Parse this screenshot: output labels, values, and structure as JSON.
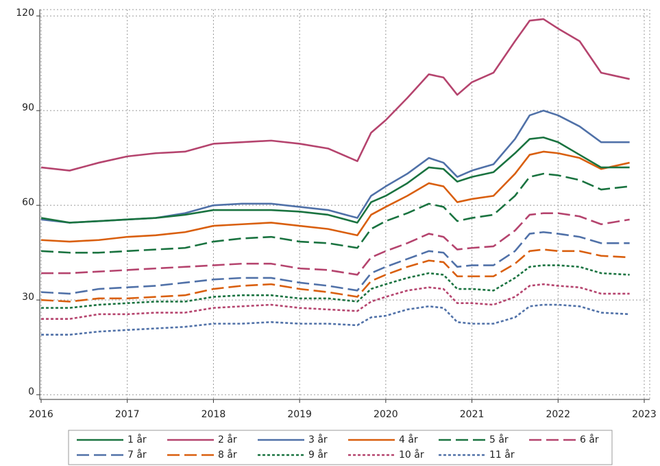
{
  "chart_data": {
    "type": "line",
    "x": [
      2016.0,
      2016.33,
      2016.67,
      2017.0,
      2017.33,
      2017.67,
      2018.0,
      2018.33,
      2018.67,
      2019.0,
      2019.33,
      2019.67,
      2019.83,
      2020.0,
      2020.25,
      2020.5,
      2020.67,
      2020.83,
      2021.0,
      2021.25,
      2021.5,
      2021.67,
      2021.83,
      2022.0,
      2022.25,
      2022.5,
      2022.83
    ],
    "xlim": [
      2016,
      2023
    ],
    "xticks": [
      2016,
      2017,
      2018,
      2019,
      2020,
      2021,
      2022,
      2023
    ],
    "ylim": [
      -1.5,
      122
    ],
    "yticks": [
      0,
      30,
      60,
      90,
      120
    ],
    "grid": true,
    "legend": "bottom",
    "series": [
      {
        "name": "1 år",
        "color": "#1a7340",
        "style": "solid",
        "values": [
          56,
          54.5,
          55,
          55.5,
          56,
          57,
          58.5,
          58.5,
          58.5,
          58,
          57,
          54.5,
          61,
          63,
          67,
          72,
          71.5,
          67.5,
          69,
          70.5,
          76.5,
          81,
          81.5,
          80,
          76,
          72,
          72
        ]
      },
      {
        "name": "2 år",
        "color": "#b5446e",
        "style": "solid",
        "values": [
          72,
          71,
          73.5,
          75.5,
          76.5,
          77,
          79.5,
          80,
          80.5,
          79.5,
          78,
          74,
          83,
          87,
          94,
          101.5,
          100.5,
          95,
          99,
          102,
          112,
          118.5,
          119,
          116,
          112,
          102,
          100
        ]
      },
      {
        "name": "3 år",
        "color": "#5071a8",
        "style": "solid",
        "values": [
          55.5,
          54.5,
          55,
          55.5,
          56,
          57.5,
          60,
          60.5,
          60.5,
          59.5,
          58.5,
          56,
          63,
          66,
          70,
          75,
          73.5,
          69,
          71,
          73,
          81,
          88.5,
          90,
          88.5,
          85,
          80,
          80
        ]
      },
      {
        "name": "4 år",
        "color": "#d95f0e",
        "style": "solid",
        "values": [
          49,
          48.5,
          49,
          50,
          50.5,
          51.5,
          53.5,
          54,
          54.5,
          53.5,
          52.5,
          50.5,
          57,
          59.5,
          63,
          67,
          66,
          61,
          62,
          63,
          70,
          76,
          77,
          76.5,
          75,
          71.5,
          73.5
        ]
      },
      {
        "name": "5 år",
        "color": "#1a7340",
        "style": "dashed",
        "values": [
          45.5,
          45,
          45,
          45.5,
          46,
          46.5,
          48.5,
          49.5,
          50,
          48.5,
          48,
          46.5,
          52.5,
          55,
          57.5,
          60.5,
          59.5,
          55,
          56,
          57,
          63,
          69,
          70,
          69.5,
          68,
          65,
          66
        ]
      },
      {
        "name": "6 år",
        "color": "#b5446e",
        "style": "dashed",
        "values": [
          38.5,
          38.5,
          39,
          39.5,
          40,
          40.5,
          41,
          41.5,
          41.5,
          40,
          39.5,
          38,
          43.5,
          45.5,
          48,
          51,
          50,
          46,
          46.5,
          47,
          52,
          57,
          57.5,
          57.5,
          56.5,
          54,
          55.5
        ]
      },
      {
        "name": "7 år",
        "color": "#5071a8",
        "style": "dashed",
        "values": [
          32.5,
          32,
          33.5,
          34,
          34.5,
          35.5,
          36.5,
          37,
          37,
          35.5,
          34.5,
          33,
          38.5,
          40.5,
          43,
          45.5,
          45,
          40.5,
          41,
          41,
          45.5,
          51,
          51.5,
          51,
          50,
          48,
          48
        ]
      },
      {
        "name": "8 år",
        "color": "#d95f0e",
        "style": "dashed",
        "values": [
          30,
          29.5,
          30.5,
          30.5,
          31,
          31.5,
          33.5,
          34.5,
          35,
          33.5,
          32.5,
          31,
          36,
          38,
          40.5,
          42.5,
          42,
          37.5,
          37.5,
          37.5,
          41.5,
          45.5,
          46,
          45.5,
          45.5,
          44,
          43.5
        ]
      },
      {
        "name": "9 år",
        "color": "#1a7340",
        "style": "dotted",
        "values": [
          27.5,
          27.5,
          28.5,
          29,
          29.5,
          29.5,
          31,
          31.5,
          31.5,
          30.5,
          30.5,
          29.5,
          33.5,
          35,
          37,
          38.5,
          38,
          33.5,
          33.5,
          33,
          37,
          40.5,
          41,
          41,
          40.5,
          38.5,
          38
        ]
      },
      {
        "name": "10 år",
        "color": "#b5446e",
        "style": "dotted",
        "values": [
          24,
          24,
          25.5,
          25.5,
          26,
          26,
          27.5,
          28,
          28.5,
          27.5,
          27,
          26.5,
          29.5,
          31,
          33,
          34,
          33.5,
          29,
          29,
          28.5,
          31,
          34.5,
          35,
          34.5,
          34,
          32,
          32
        ]
      },
      {
        "name": "11 år",
        "color": "#5071a8",
        "style": "dotted",
        "values": [
          19,
          19,
          20,
          20.5,
          21,
          21.5,
          22.5,
          22.5,
          23,
          22.5,
          22.5,
          22,
          24.5,
          25,
          27,
          28,
          27.5,
          23,
          22.5,
          22.5,
          24.5,
          28,
          28.5,
          28.5,
          28,
          26,
          25.5
        ]
      }
    ]
  }
}
